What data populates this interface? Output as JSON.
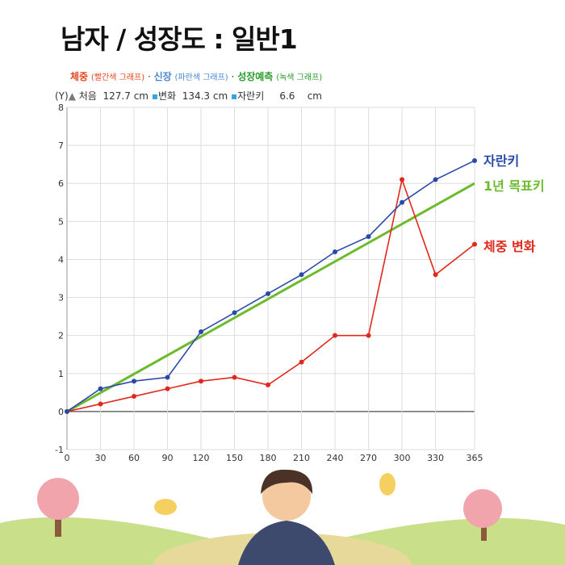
{
  "title": "남자 / 성장도 : 일반1",
  "legend": {
    "weight": "체중",
    "weight_note": "(빨간색 그래프)",
    "height": "신장",
    "height_note": "(파란색 그래프)",
    "forecast": "성장예측",
    "forecast_note": "(녹색 그래프)",
    "sep": "·"
  },
  "info": {
    "axis": "(Y)",
    "start_label": "처음",
    "start_value": "127.7",
    "unit": "cm",
    "change_label": "변화",
    "change_value": "134.3",
    "growth_label": "자란키",
    "growth_value": "6.6"
  },
  "chart_data": {
    "type": "line",
    "x": [
      0,
      30,
      60,
      90,
      120,
      150,
      180,
      210,
      240,
      270,
      300,
      330,
      365
    ],
    "xlim": [
      0,
      365
    ],
    "ylim": [
      -1,
      8
    ],
    "yticks": [
      -1,
      0,
      1,
      2,
      3,
      4,
      5,
      6,
      7,
      8
    ],
    "grid": true,
    "series": [
      {
        "name": "자란키",
        "color": "#2b4aa8",
        "values": [
          0,
          0.6,
          0.8,
          0.9,
          2.1,
          2.6,
          3.1,
          3.6,
          4.2,
          4.6,
          5.5,
          6.1,
          6.6
        ]
      },
      {
        "name": "1년 목표키",
        "color": "#6cbb2c",
        "values_at": {
          "x": [
            0,
            365
          ],
          "y": [
            0,
            6
          ]
        }
      },
      {
        "name": "체중 변화",
        "color": "#e0281c",
        "values": [
          0,
          0.2,
          0.4,
          0.6,
          0.8,
          0.9,
          0.7,
          1.3,
          2,
          2,
          6.1,
          3.6,
          4.4
        ]
      }
    ]
  }
}
